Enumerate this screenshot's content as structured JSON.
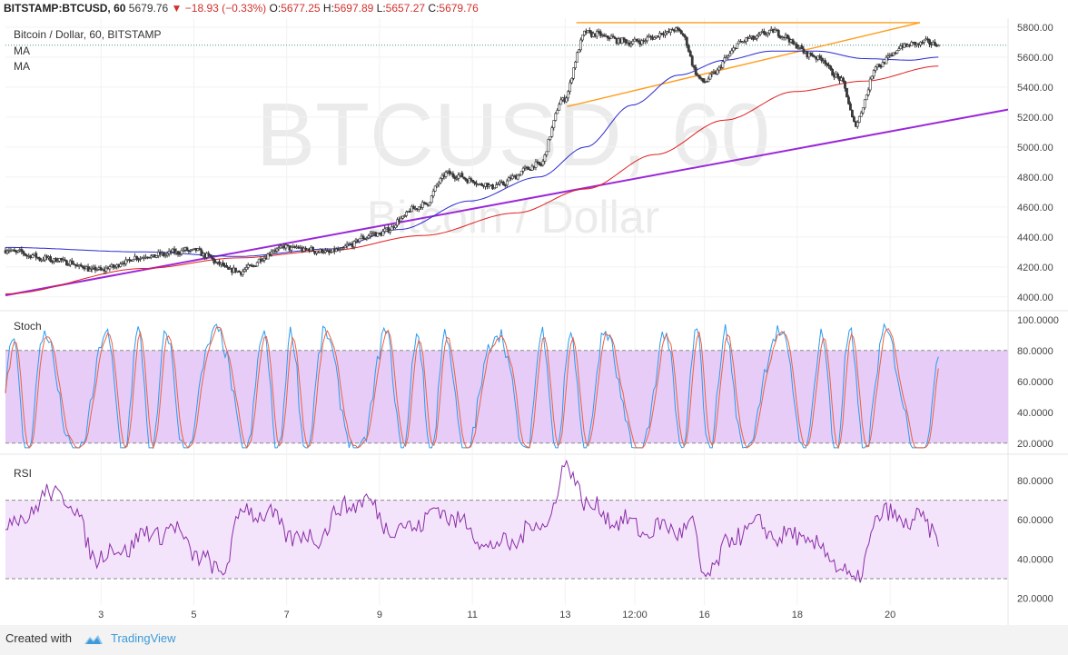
{
  "header": {
    "symbol": "BITSTAMP:BTCUSD, 60",
    "last": "5679.76",
    "change": "−18.93 (−0.33%)",
    "o_label": "O:",
    "o_value": "5677.25",
    "h_label": "H:",
    "h_value": "5697.89",
    "l_label": "L:",
    "l_value": "5657.27",
    "c_label": "C:",
    "c_value": "5679.76"
  },
  "legend": {
    "title": "Bitcoin / Dollar, 60, BITSTAMP",
    "ma1": "MA",
    "ma2": "MA"
  },
  "watermark": {
    "big": "BTCUSD, 60",
    "small": "Bitcoin / Dollar"
  },
  "footer": {
    "created_with": "Created with",
    "brand": "TradingView"
  },
  "colors": {
    "up": "#3a3a3a",
    "down": "#555555",
    "ma_fast": "#2a2ad0",
    "ma_slow": "#e02020",
    "trend_purple": "#9b27d8",
    "triangle_orange": "#ff9c1a",
    "stoch_k": "#2b9bf0",
    "stoch_d": "#ef6040",
    "rsi": "#8b2da8",
    "stoch_band": "#e6ccf7",
    "rsi_band": "#f3e4fb"
  },
  "chart_data": [
    {
      "type": "candlestick",
      "title": "Bitcoin / Dollar, 60, BITSTAMP",
      "x_ticks": [
        "3",
        "5",
        "7",
        "9",
        "11",
        "13",
        "12:00",
        "16",
        "18",
        "20"
      ],
      "y_ticks": [
        "5800.00",
        "5600.00",
        "5400.00",
        "5200.00",
        "5000.00",
        "4800.00",
        "4600.00",
        "4400.00",
        "4200.00",
        "4000.00"
      ],
      "ylim": [
        3920,
        5860
      ],
      "last_price": 5679.76,
      "key_levels": [
        {
          "x": 0.0,
          "y": 4310
        },
        {
          "x": 1.0,
          "y": 4250
        },
        {
          "x": 2.0,
          "y": 4180
        },
        {
          "x": 3.0,
          "y": 4270
        },
        {
          "x": 4.0,
          "y": 4310
        },
        {
          "x": 5.0,
          "y": 4170
        },
        {
          "x": 6.0,
          "y": 4330
        },
        {
          "x": 7.0,
          "y": 4300
        },
        {
          "x": 8.0,
          "y": 4420
        },
        {
          "x": 9.0,
          "y": 4610
        },
        {
          "x": 9.5,
          "y": 4820
        },
        {
          "x": 10.5,
          "y": 4740
        },
        {
          "x": 11.5,
          "y": 4880
        },
        {
          "x": 12.0,
          "y": 5310
        },
        {
          "x": 12.5,
          "y": 5760
        },
        {
          "x": 13.5,
          "y": 5700
        },
        {
          "x": 14.5,
          "y": 5780
        },
        {
          "x": 15.0,
          "y": 5440
        },
        {
          "x": 16.0,
          "y": 5720
        },
        {
          "x": 16.5,
          "y": 5770
        },
        {
          "x": 17.5,
          "y": 5600
        },
        {
          "x": 18.0,
          "y": 5450
        },
        {
          "x": 18.3,
          "y": 5160
        },
        {
          "x": 18.8,
          "y": 5550
        },
        {
          "x": 19.4,
          "y": 5680
        },
        {
          "x": 19.9,
          "y": 5700
        },
        {
          "x": 20.1,
          "y": 5679.76
        }
      ],
      "series": [
        {
          "name": "MA",
          "kind": "ma_fast",
          "points": [
            [
              0,
              4330
            ],
            [
              3,
              4300
            ],
            [
              5,
              4270
            ],
            [
              7,
              4320
            ],
            [
              8.5,
              4450
            ],
            [
              10,
              4640
            ],
            [
              11.5,
              4800
            ],
            [
              12.5,
              5000
            ],
            [
              13.5,
              5280
            ],
            [
              14.5,
              5480
            ],
            [
              15.5,
              5580
            ],
            [
              16.5,
              5640
            ],
            [
              17.5,
              5640
            ],
            [
              18.5,
              5590
            ],
            [
              19.5,
              5580
            ],
            [
              20.1,
              5600
            ]
          ]
        },
        {
          "name": "MA",
          "kind": "ma_slow",
          "points": [
            [
              0,
              4020
            ],
            [
              3,
              4190
            ],
            [
              5,
              4260
            ],
            [
              7,
              4310
            ],
            [
              9,
              4410
            ],
            [
              11,
              4560
            ],
            [
              12.5,
              4720
            ],
            [
              14,
              4950
            ],
            [
              15.5,
              5180
            ],
            [
              17,
              5370
            ],
            [
              18.5,
              5440
            ],
            [
              20.1,
              5540
            ]
          ]
        }
      ],
      "trendlines": [
        {
          "kind": "trend_purple",
          "from": [
            0,
            4010
          ],
          "to": [
            21.6,
            5250
          ]
        },
        {
          "kind": "triangle_orange",
          "from": [
            12.3,
            5830
          ],
          "to": [
            19.7,
            5830
          ]
        },
        {
          "kind": "triangle_orange",
          "from": [
            12.1,
            5270
          ],
          "to": [
            19.7,
            5830
          ]
        }
      ]
    },
    {
      "type": "line",
      "title": "Stoch",
      "y_ticks": [
        "100.0000",
        "80.0000",
        "60.0000",
        "40.0000",
        "20.0000"
      ],
      "ylim": [
        14,
        104
      ],
      "bands": [
        20,
        80
      ],
      "series": [
        {
          "name": "",
          "kind": "stoch_k"
        },
        {
          "name": "",
          "kind": "stoch_d"
        }
      ]
    },
    {
      "type": "line",
      "title": "RSI",
      "y_ticks": [
        "80.0000",
        "60.0000",
        "40.0000",
        "20.0000"
      ],
      "ylim": [
        18,
        92
      ],
      "bands": [
        30,
        70
      ],
      "key_levels": [
        {
          "x": 0.0,
          "y": 58
        },
        {
          "x": 1.2,
          "y": 74
        },
        {
          "x": 2.0,
          "y": 42
        },
        {
          "x": 3.5,
          "y": 55
        },
        {
          "x": 4.6,
          "y": 34
        },
        {
          "x": 5.2,
          "y": 66
        },
        {
          "x": 6.5,
          "y": 50
        },
        {
          "x": 7.6,
          "y": 70
        },
        {
          "x": 8.5,
          "y": 55
        },
        {
          "x": 9.4,
          "y": 64
        },
        {
          "x": 10.6,
          "y": 46
        },
        {
          "x": 11.6,
          "y": 58
        },
        {
          "x": 12.1,
          "y": 86
        },
        {
          "x": 12.7,
          "y": 64
        },
        {
          "x": 13.8,
          "y": 55
        },
        {
          "x": 14.8,
          "y": 56
        },
        {
          "x": 15.0,
          "y": 33
        },
        {
          "x": 16.0,
          "y": 56
        },
        {
          "x": 17.2,
          "y": 50
        },
        {
          "x": 18.0,
          "y": 38
        },
        {
          "x": 18.3,
          "y": 25
        },
        {
          "x": 18.8,
          "y": 62
        },
        {
          "x": 19.5,
          "y": 60
        },
        {
          "x": 20.1,
          "y": 54
        }
      ],
      "series": [
        {
          "name": "",
          "kind": "rsi"
        }
      ]
    }
  ]
}
